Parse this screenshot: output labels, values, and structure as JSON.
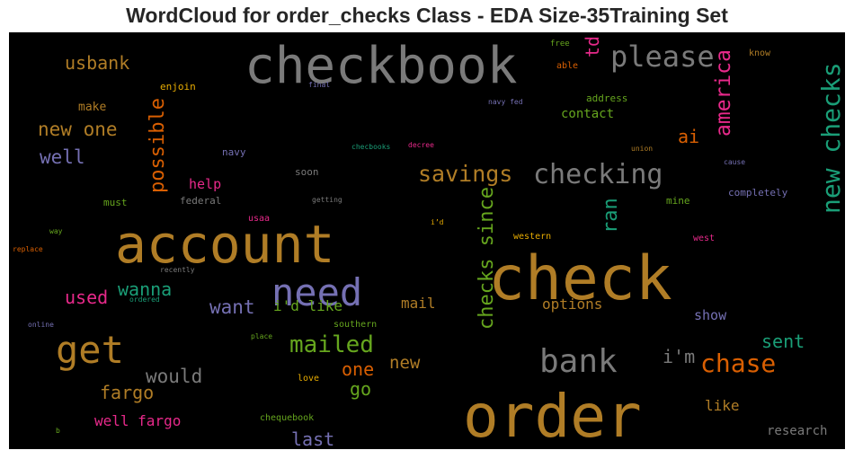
{
  "chart_data": {
    "type": "wordcloud",
    "title": "WordCloud for order_checks Class - EDA Size-35Training Set",
    "background": "#000000",
    "palette": [
      "#b07d26",
      "#7a7a7a",
      "#1a9e77",
      "#7570b3",
      "#d95f02",
      "#e7298a",
      "#66a61e",
      "#e6ab02"
    ],
    "words": [
      {
        "text": "checkbook",
        "color": "#7a7a7a"
      },
      {
        "text": "account",
        "color": "#b07d26"
      },
      {
        "text": "check",
        "color": "#b07d26"
      },
      {
        "text": "order",
        "color": "#b07d26"
      },
      {
        "text": "need",
        "color": "#7570b3"
      },
      {
        "text": "get",
        "color": "#b07d26"
      },
      {
        "text": "bank",
        "color": "#7a7a7a"
      },
      {
        "text": "new checks",
        "color": "#1a9e77"
      },
      {
        "text": "checking",
        "color": "#7a7a7a"
      },
      {
        "text": "please",
        "color": "#7a7a7a"
      },
      {
        "text": "chase",
        "color": "#d95f02"
      },
      {
        "text": "mailed",
        "color": "#66a61e"
      },
      {
        "text": "savings",
        "color": "#b07d26"
      },
      {
        "text": "checks since",
        "color": "#66a61e"
      },
      {
        "text": "america",
        "color": "#e7298a"
      },
      {
        "text": "possible",
        "color": "#d95f02"
      },
      {
        "text": "usbank",
        "color": "#b07d26"
      },
      {
        "text": "new one",
        "color": "#b07d26"
      },
      {
        "text": "well",
        "color": "#7570b3"
      },
      {
        "text": "ran",
        "color": "#1a9e77"
      },
      {
        "text": "would",
        "color": "#7a7a7a"
      },
      {
        "text": "wanna",
        "color": "#1a9e77"
      },
      {
        "text": "want",
        "color": "#7570b3"
      },
      {
        "text": "used",
        "color": "#e7298a"
      },
      {
        "text": "fargo",
        "color": "#b07d26"
      },
      {
        "text": "last",
        "color": "#7570b3"
      },
      {
        "text": "one",
        "color": "#d95f02"
      },
      {
        "text": "go",
        "color": "#66a61e"
      },
      {
        "text": "new",
        "color": "#b07d26"
      },
      {
        "text": "i'm",
        "color": "#7a7a7a"
      },
      {
        "text": "sent",
        "color": "#1a9e77"
      },
      {
        "text": "well fargo",
        "color": "#e7298a"
      },
      {
        "text": "ai",
        "color": "#d95f02"
      },
      {
        "text": "td",
        "color": "#e7298a"
      },
      {
        "text": "mail",
        "color": "#b07d26"
      },
      {
        "text": "i'd like",
        "color": "#66a61e"
      },
      {
        "text": "options",
        "color": "#b07d26"
      },
      {
        "text": "like",
        "color": "#b07d26"
      },
      {
        "text": "show",
        "color": "#7570b3"
      },
      {
        "text": "help",
        "color": "#e7298a"
      },
      {
        "text": "research",
        "color": "#7a7a7a"
      },
      {
        "text": "contact",
        "color": "#66a61e"
      },
      {
        "text": "make",
        "color": "#b07d26"
      },
      {
        "text": "enjoin",
        "color": "#e6ab02"
      },
      {
        "text": "address",
        "color": "#66a61e"
      },
      {
        "text": "navy",
        "color": "#7570b3"
      },
      {
        "text": "soon",
        "color": "#7a7a7a"
      },
      {
        "text": "federal",
        "color": "#7a7a7a"
      },
      {
        "text": "must",
        "color": "#66a61e"
      },
      {
        "text": "completely",
        "color": "#7570b3"
      },
      {
        "text": "mine",
        "color": "#66a61e"
      },
      {
        "text": "western",
        "color": "#e6ab02"
      },
      {
        "text": "southern",
        "color": "#66a61e"
      },
      {
        "text": "chequebook",
        "color": "#66a61e"
      },
      {
        "text": "love",
        "color": "#e6ab02"
      },
      {
        "text": "west",
        "color": "#e7298a"
      },
      {
        "text": "usaa",
        "color": "#e7298a"
      },
      {
        "text": "know",
        "color": "#b07d26"
      },
      {
        "text": "able",
        "color": "#d95f02"
      },
      {
        "text": "free",
        "color": "#66a61e"
      },
      {
        "text": "final",
        "color": "#7570b3"
      },
      {
        "text": "navy fed",
        "color": "#7570b3"
      },
      {
        "text": "checbooks",
        "color": "#1a9e77"
      },
      {
        "text": "decree",
        "color": "#e7298a"
      },
      {
        "text": "union",
        "color": "#b07d26"
      },
      {
        "text": "cause",
        "color": "#7570b3"
      },
      {
        "text": "getting",
        "color": "#7a7a7a"
      },
      {
        "text": "i’d",
        "color": "#e6ab02"
      },
      {
        "text": "way",
        "color": "#66a61e"
      },
      {
        "text": "replace",
        "color": "#d95f02"
      },
      {
        "text": "recently",
        "color": "#7a7a7a"
      },
      {
        "text": "ordered",
        "color": "#1a9e77"
      },
      {
        "text": "online",
        "color": "#7570b3"
      },
      {
        "text": "place",
        "color": "#66a61e"
      },
      {
        "text": "b",
        "color": "#66a61e"
      }
    ]
  }
}
